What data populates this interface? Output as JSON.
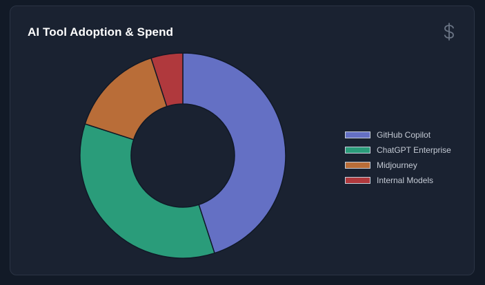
{
  "card": {
    "title": "AI Tool Adoption & Spend",
    "icon": "dollar-icon",
    "icon_color": "#6b7585",
    "background": "#1a2231"
  },
  "chart_data": {
    "type": "pie",
    "variant": "doughnut",
    "title": "AI Tool Adoption & Spend",
    "categories": [
      "GitHub Copilot",
      "ChatGPT Enterprise",
      "Midjourney",
      "Internal Models"
    ],
    "values": [
      45,
      35,
      15,
      5
    ],
    "colors": [
      "#6470c4",
      "#2a9c7a",
      "#b96d38",
      "#b0393d"
    ],
    "legend_position": "right",
    "grid": false
  }
}
